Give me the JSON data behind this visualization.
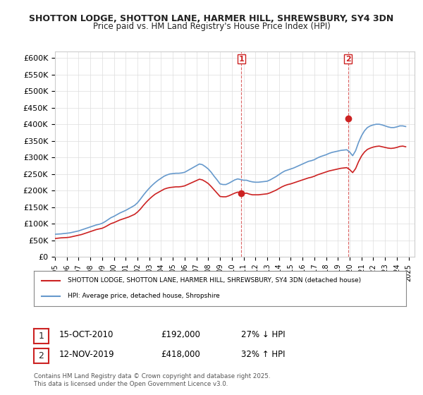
{
  "title1": "SHOTTON LODGE, SHOTTON LANE, HARMER HILL, SHREWSBURY, SY4 3DN",
  "title2": "Price paid vs. HM Land Registry's House Price Index (HPI)",
  "legend_line1": "SHOTTON LODGE, SHOTTON LANE, HARMER HILL, SHREWSBURY, SY4 3DN (detached house)",
  "legend_line2": "HPI: Average price, detached house, Shropshire",
  "annotation1_label": "1",
  "annotation1_date": "15-OCT-2010",
  "annotation1_price": "£192,000",
  "annotation1_hpi": "27% ↓ HPI",
  "annotation1_year": 2010.8,
  "annotation1_value": 192000,
  "annotation2_label": "2",
  "annotation2_date": "12-NOV-2019",
  "annotation2_price": "£418,000",
  "annotation2_hpi": "32% ↑ HPI",
  "annotation2_year": 2019.87,
  "annotation2_value": 418000,
  "hpi_color": "#6699cc",
  "price_color": "#cc2222",
  "background_color": "#ffffff",
  "grid_color": "#dddddd",
  "ylim": [
    0,
    620000
  ],
  "yticks": [
    0,
    50000,
    100000,
    150000,
    200000,
    250000,
    300000,
    350000,
    400000,
    450000,
    500000,
    550000,
    600000
  ],
  "footer": "Contains HM Land Registry data © Crown copyright and database right 2025.\nThis data is licensed under the Open Government Licence v3.0.",
  "hpi_data": {
    "years": [
      1995.0,
      1995.25,
      1995.5,
      1995.75,
      1996.0,
      1996.25,
      1996.5,
      1996.75,
      1997.0,
      1997.25,
      1997.5,
      1997.75,
      1998.0,
      1998.25,
      1998.5,
      1998.75,
      1999.0,
      1999.25,
      1999.5,
      1999.75,
      2000.0,
      2000.25,
      2000.5,
      2000.75,
      2001.0,
      2001.25,
      2001.5,
      2001.75,
      2002.0,
      2002.25,
      2002.5,
      2002.75,
      2003.0,
      2003.25,
      2003.5,
      2003.75,
      2004.0,
      2004.25,
      2004.5,
      2004.75,
      2005.0,
      2005.25,
      2005.5,
      2005.75,
      2006.0,
      2006.25,
      2006.5,
      2006.75,
      2007.0,
      2007.25,
      2007.5,
      2007.75,
      2008.0,
      2008.25,
      2008.5,
      2008.75,
      2009.0,
      2009.25,
      2009.5,
      2009.75,
      2010.0,
      2010.25,
      2010.5,
      2010.75,
      2011.0,
      2011.25,
      2011.5,
      2011.75,
      2012.0,
      2012.25,
      2012.5,
      2012.75,
      2013.0,
      2013.25,
      2013.5,
      2013.75,
      2014.0,
      2014.25,
      2014.5,
      2014.75,
      2015.0,
      2015.25,
      2015.5,
      2015.75,
      2016.0,
      2016.25,
      2016.5,
      2016.75,
      2017.0,
      2017.25,
      2017.5,
      2017.75,
      2018.0,
      2018.25,
      2018.5,
      2018.75,
      2019.0,
      2019.25,
      2019.5,
      2019.75,
      2020.0,
      2020.25,
      2020.5,
      2020.75,
      2021.0,
      2021.25,
      2021.5,
      2021.75,
      2022.0,
      2022.25,
      2022.5,
      2022.75,
      2023.0,
      2023.25,
      2023.5,
      2023.75,
      2024.0,
      2024.25,
      2024.5,
      2024.75
    ],
    "values": [
      68000,
      68500,
      69000,
      70000,
      71000,
      72000,
      74000,
      76000,
      78000,
      81000,
      84000,
      87000,
      90000,
      93000,
      96000,
      98000,
      101000,
      106000,
      112000,
      118000,
      122000,
      127000,
      132000,
      136000,
      140000,
      145000,
      150000,
      155000,
      163000,
      174000,
      186000,
      197000,
      207000,
      216000,
      224000,
      231000,
      237000,
      243000,
      247000,
      250000,
      251000,
      252000,
      252000,
      253000,
      255000,
      260000,
      265000,
      270000,
      275000,
      280000,
      278000,
      272000,
      265000,
      255000,
      243000,
      232000,
      220000,
      218000,
      218000,
      222000,
      227000,
      232000,
      235000,
      233000,
      231000,
      231000,
      228000,
      226000,
      225000,
      225000,
      226000,
      227000,
      228000,
      232000,
      237000,
      242000,
      248000,
      254000,
      259000,
      262000,
      265000,
      268000,
      272000,
      276000,
      280000,
      284000,
      288000,
      290000,
      293000,
      298000,
      302000,
      305000,
      308000,
      312000,
      315000,
      317000,
      319000,
      321000,
      322000,
      323000,
      316000,
      305000,
      320000,
      345000,
      365000,
      380000,
      390000,
      395000,
      398000,
      400000,
      400000,
      398000,
      395000,
      392000,
      390000,
      390000,
      392000,
      395000,
      395000,
      393000
    ]
  },
  "price_data": {
    "years": [
      1995.0,
      1995.25,
      1995.5,
      1995.75,
      1996.0,
      1996.25,
      1996.5,
      1996.75,
      1997.0,
      1997.25,
      1997.5,
      1997.75,
      1998.0,
      1998.25,
      1998.5,
      1998.75,
      1999.0,
      1999.25,
      1999.5,
      1999.75,
      2000.0,
      2000.25,
      2000.5,
      2000.75,
      2001.0,
      2001.25,
      2001.5,
      2001.75,
      2002.0,
      2002.25,
      2002.5,
      2002.75,
      2003.0,
      2003.25,
      2003.5,
      2003.75,
      2004.0,
      2004.25,
      2004.5,
      2004.75,
      2005.0,
      2005.25,
      2005.5,
      2005.75,
      2006.0,
      2006.25,
      2006.5,
      2006.75,
      2007.0,
      2007.25,
      2007.5,
      2007.75,
      2008.0,
      2008.25,
      2008.5,
      2008.75,
      2009.0,
      2009.25,
      2009.5,
      2009.75,
      2010.0,
      2010.25,
      2010.5,
      2010.75,
      2011.0,
      2011.25,
      2011.5,
      2011.75,
      2012.0,
      2012.25,
      2012.5,
      2012.75,
      2013.0,
      2013.25,
      2013.5,
      2013.75,
      2014.0,
      2014.25,
      2014.5,
      2014.75,
      2015.0,
      2015.25,
      2015.5,
      2015.75,
      2016.0,
      2016.25,
      2016.5,
      2016.75,
      2017.0,
      2017.25,
      2017.5,
      2017.75,
      2018.0,
      2018.25,
      2018.5,
      2018.75,
      2019.0,
      2019.25,
      2019.5,
      2019.75,
      2020.0,
      2020.25,
      2020.5,
      2020.75,
      2021.0,
      2021.25,
      2021.5,
      2021.75,
      2022.0,
      2022.25,
      2022.5,
      2022.75,
      2023.0,
      2023.25,
      2023.5,
      2023.75,
      2024.0,
      2024.25,
      2024.5,
      2024.75
    ],
    "values": [
      55000,
      56000,
      57000,
      57500,
      58000,
      59000,
      61000,
      63000,
      65000,
      67000,
      70000,
      73000,
      76000,
      79000,
      82000,
      84000,
      86000,
      90000,
      95000,
      100000,
      103000,
      107000,
      111000,
      114000,
      117000,
      120000,
      124000,
      128000,
      135000,
      144000,
      155000,
      165000,
      174000,
      182000,
      189000,
      194000,
      199000,
      204000,
      207000,
      209000,
      210000,
      211000,
      211000,
      212000,
      214000,
      218000,
      222000,
      226000,
      230000,
      234000,
      232000,
      227000,
      221000,
      212000,
      202000,
      192000,
      182000,
      181000,
      181000,
      184000,
      188000,
      192000,
      195000,
      193000,
      191000,
      192000,
      189000,
      187000,
      187000,
      187000,
      188000,
      189000,
      190000,
      193000,
      197000,
      201000,
      206000,
      211000,
      215000,
      218000,
      220000,
      223000,
      226000,
      229000,
      232000,
      235000,
      238000,
      240000,
      243000,
      247000,
      250000,
      253000,
      256000,
      259000,
      261000,
      263000,
      265000,
      267000,
      268000,
      269000,
      263000,
      254000,
      266000,
      287000,
      304000,
      316000,
      324000,
      328000,
      331000,
      333000,
      334000,
      332000,
      330000,
      328000,
      327000,
      328000,
      330000,
      333000,
      334000,
      332000
    ]
  }
}
